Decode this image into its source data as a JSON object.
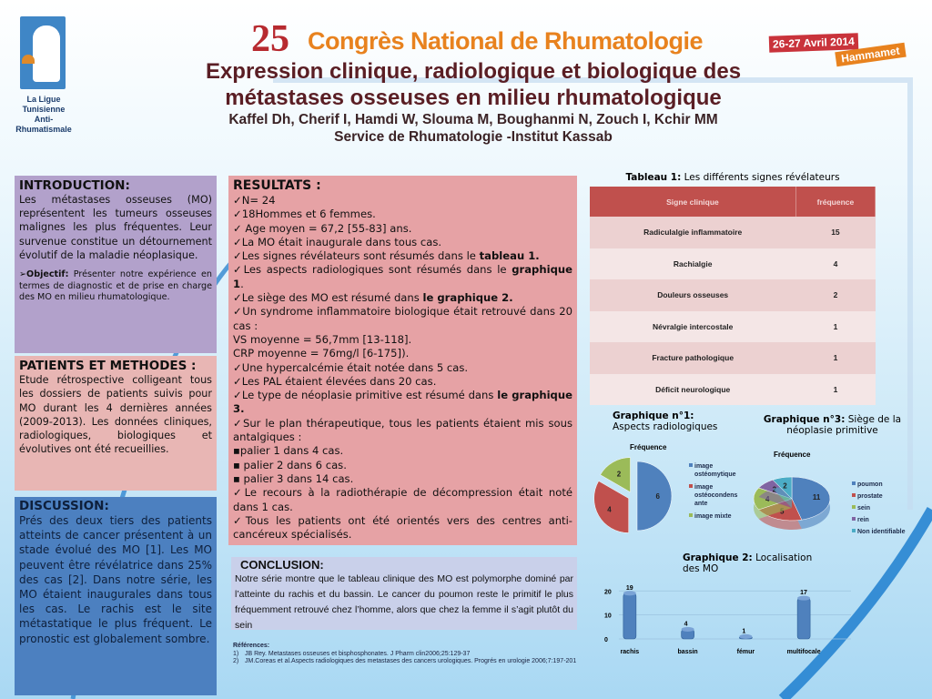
{
  "header": {
    "logo_text": [
      "La Ligue Tunisienne",
      "Anti-Rhumatismale"
    ],
    "congress_number": "25",
    "congress_name": "Congrès National de Rhumatologie",
    "dates": "26-27 Avril 2014",
    "location": "Hammamet",
    "title_line1": "Expression clinique, radiologique et biologique des",
    "title_line2": "métastases osseuses en milieu rhumatologique",
    "authors": "Kaffel Dh, Cherif I, Hamdi W, Slouma M, Boughanmi N, Zouch I, Kchir MM",
    "affiliation": "Service de Rhumatologie -Institut Kassab"
  },
  "introduction": {
    "heading": "INTRODUCTION:",
    "text": "Les métastases osseuses (MO) représentent les tumeurs osseuses malignes les plus fréquentes. Leur survenue constitue un détournement évolutif de la maladie néoplasique.",
    "objective_label": "Objectif:",
    "objective_text": " Présenter notre expérience en termes de diagnostic et de prise en charge des MO en milieu rhumatologique."
  },
  "patients": {
    "heading": "PATIENTS ET METHODES :",
    "text": "Etude rétrospective colligeant tous les dossiers de patients suivis pour MO durant les 4 dernières années (2009-2013). Les données cliniques, radiologiques, biologiques et évolutives ont été recueillies."
  },
  "discussion": {
    "heading": "DISCUSSION:",
    "text": "Prés des deux tiers des patients atteints de cancer présentent à un stade évolué des MO [1]. Les MO peuvent être révélatrice dans 25% des cas [2]. Dans notre série, les MO étaient inaugurales dans tous les cas. Le rachis est le site métastatique le plus fréquent. Le pronostic est globalement sombre."
  },
  "resultats": {
    "heading": "RESULTATS :",
    "l1": "✓N= 24",
    "l2": "✓18Hommes et 6 femmes.",
    "l3": "✓ Age moyen = 67,2 [55-83] ans.",
    "l4": "✓La MO était inaugurale dans tous cas.",
    "l5a": "✓Les signes révélateurs sont résumés dans le ",
    "l5b": "tableau 1.",
    "l6a": "✓Les aspects radiologiques sont résumés dans le ",
    "l6b": "graphique 1",
    "l6c": ".",
    "l7a": "✓Le siège des MO est résumé dans ",
    "l7b": "le graphique 2.",
    "l8": "✓Un syndrome inflammatoire biologique était retrouvé dans 20 cas :",
    "l9": "VS moyenne = 56,7mm [13-118].",
    "l10": "CRP moyenne = 76mg/l [6-175]).",
    "l11": "✓Une hypercalcémie était notée dans 5 cas.",
    "l12": "✓Les PAL étaient élevées dans 20 cas.",
    "l13a": "✓Le type de néoplasie primitive est résumé dans ",
    "l13b": "le graphique 3.",
    "l14": "✓Sur le plan thérapeutique, tous les patients étaient mis sous antalgiques :",
    "l15": "▪palier 1 dans 4 cas.",
    "l16": "▪ palier 2 dans 6 cas.",
    "l17": "▪ palier 3 dans 14 cas.",
    "l18": "✓Le recours à la radiothérapie de décompression était noté dans 1 cas.",
    "l19": "✓Tous les patients ont été orientés vers des centres anti-cancéreux spécialisés."
  },
  "conclusion": {
    "heading": "CONCLUSION:",
    "text": "Notre série montre que le tableau clinique des MO est polymorphe dominé par l’atteinte du rachis et du bassin. Le cancer du poumon reste le primitif le plus fréquemment retrouvé chez l’homme, alors que chez la femme il s’agit plutôt du sein"
  },
  "references": {
    "heading": "Références:",
    "items": [
      {
        "n": "1)",
        "text": "JB Rey. Metastases osseuses et bisphosphonates. J Pharm clin2006;25:129-37"
      },
      {
        "n": "2)",
        "text": "JM.Coreas et al.Aspects radiologiques des metastases des cancers urologiques. Progrés en urologie 2006;7:197-201"
      }
    ]
  },
  "table1": {
    "caption_bold": "Tableau 1:",
    "caption": " Les différents signes révélateurs",
    "headers": [
      "Signe clinique",
      "fréquence"
    ],
    "rows": [
      [
        "Radiculalgie inflammatoire",
        "15"
      ],
      [
        "Rachialgie",
        "4"
      ],
      [
        "Douleurs osseuses",
        "2"
      ],
      [
        "Névralgie intercostale",
        "1"
      ],
      [
        "Fracture pathologique",
        "1"
      ],
      [
        "Déficit neurologique",
        "1"
      ]
    ]
  },
  "chart_data": [
    {
      "type": "pie",
      "title_bold": "Graphique n°1:",
      "title": "Aspects radiologiques",
      "series_name": "Fréquence",
      "categories": [
        "image ostéomytique",
        "image ostéocondensante",
        "image mixte"
      ],
      "legend_lines": [
        [
          "image",
          "ostéomytique"
        ],
        [
          "image",
          "ostéocondens",
          "ante"
        ],
        [
          "image mixte"
        ]
      ],
      "values": [
        6,
        4,
        2
      ],
      "colors": [
        "#4f81bd",
        "#c0504d",
        "#9bbb59"
      ],
      "legend": "right"
    },
    {
      "type": "pie",
      "title_bold": "Graphique n°3:",
      "title": " Siège de la néoplasie primitive",
      "series_name": "Fréquence",
      "categories": [
        "poumon",
        "prostate",
        "sein",
        "rein",
        "Non identifiable"
      ],
      "values": [
        11,
        5,
        4,
        2,
        2
      ],
      "colors": [
        "#4f81bd",
        "#c0504d",
        "#9bbb59",
        "#8064a2",
        "#4bacc6"
      ],
      "legend": "right"
    },
    {
      "type": "bar",
      "title_bold": "Graphique 2:",
      "title": " Localisation des MO",
      "categories": [
        "rachis",
        "bassin",
        "fémur",
        "multifocale"
      ],
      "values": [
        19,
        4,
        1,
        17
      ],
      "yticks": [
        "0",
        "10",
        "20"
      ],
      "ylim": [
        0,
        22
      ],
      "color": "#4f81bd"
    }
  ]
}
